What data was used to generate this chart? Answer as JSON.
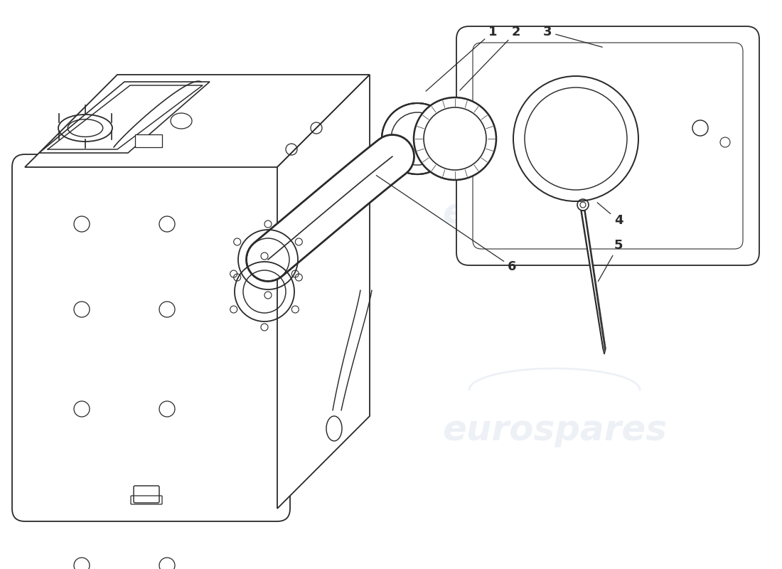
{
  "bg_color": "#ffffff",
  "line_color": "#2a2a2a",
  "watermark_color": "#c0d0e0",
  "watermark_alpha": 0.28,
  "watermark_text": "eurospares",
  "fig_width": 11.0,
  "fig_height": 8.0,
  "dpi": 100
}
